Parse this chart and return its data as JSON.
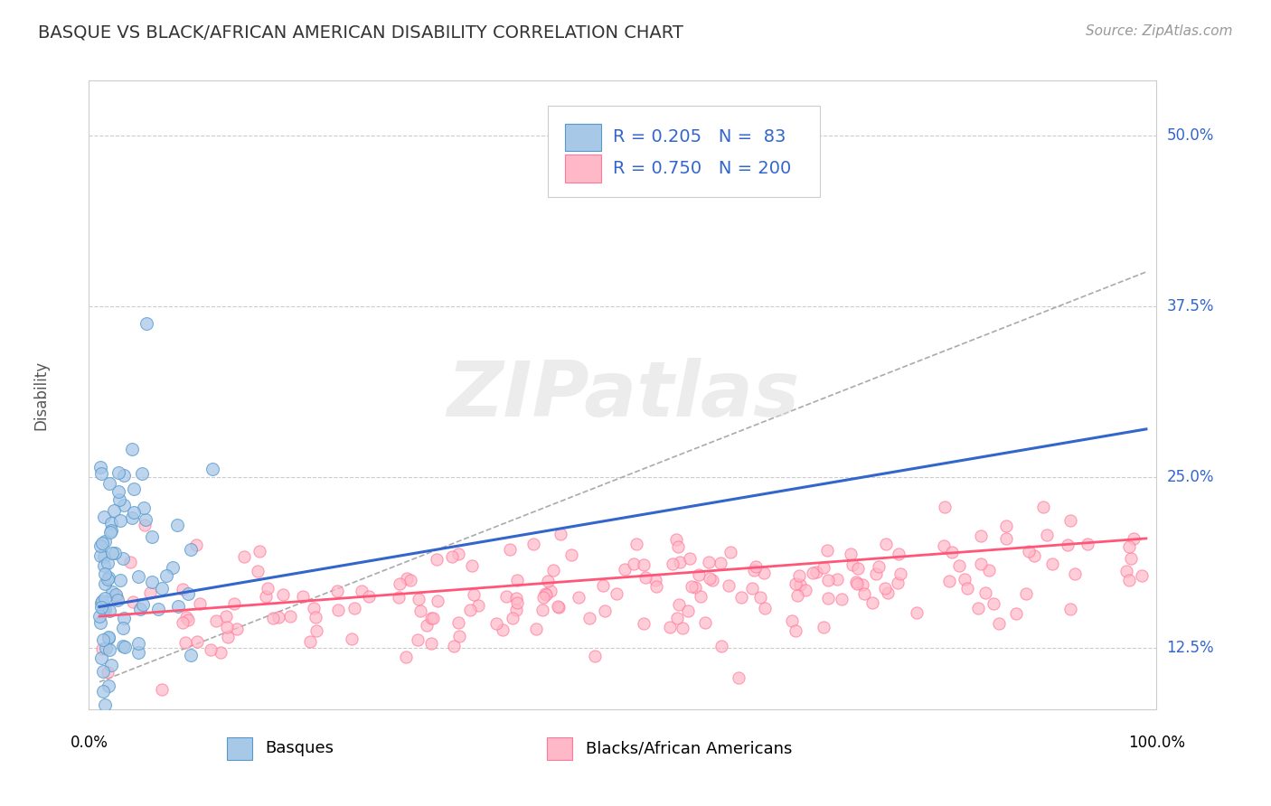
{
  "title": "BASQUE VS BLACK/AFRICAN AMERICAN DISABILITY CORRELATION CHART",
  "source": "Source: ZipAtlas.com",
  "ylabel_ticks": [
    "12.5%",
    "25.0%",
    "37.5%",
    "50.0%"
  ],
  "ylabel_vals": [
    0.125,
    0.25,
    0.375,
    0.5
  ],
  "ylabel_label": "Disability",
  "legend_label1": "Basques",
  "legend_label2": "Blacks/African Americans",
  "R1": 0.205,
  "N1": 83,
  "R2": 0.75,
  "N2": 200,
  "color_blue_fill": "#A8C8E8",
  "color_blue_edge": "#5599CC",
  "color_pink_fill": "#FFB8C8",
  "color_pink_edge": "#FF7799",
  "color_line_blue": "#3366CC",
  "color_line_pink": "#FF5577",
  "color_dash_gray": "#AAAAAA",
  "color_grid": "#CCCCCC",
  "color_legend_text_R": "#3366CC",
  "color_legend_text_N": "#3366CC",
  "watermark_text": "ZIPatlas",
  "xmin": 0.0,
  "xmax": 1.0,
  "ymin": 0.08,
  "ymax": 0.54,
  "blue_line_x0": 0.0,
  "blue_line_x1": 1.0,
  "blue_line_y0": 0.155,
  "blue_line_y1": 0.285,
  "pink_line_x0": 0.0,
  "pink_line_x1": 1.0,
  "pink_line_y0": 0.148,
  "pink_line_y1": 0.205,
  "dash_line_x0": 0.0,
  "dash_line_x1": 1.0,
  "dash_line_y0": 0.1,
  "dash_line_y1": 0.4
}
